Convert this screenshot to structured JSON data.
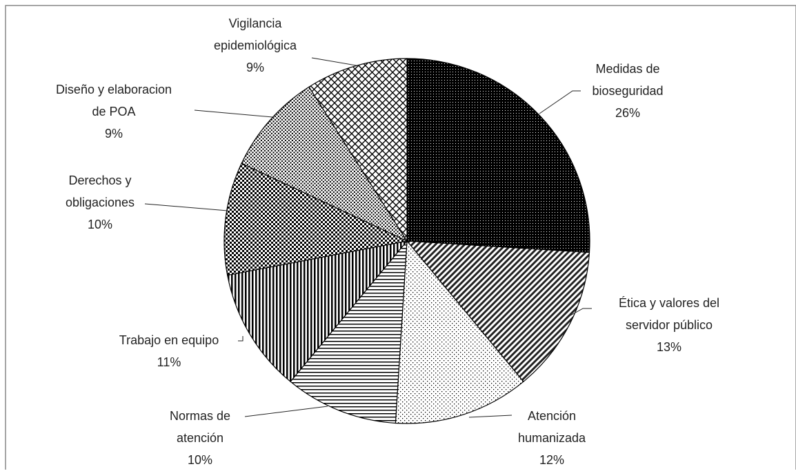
{
  "chart_data": {
    "type": "pie",
    "categories": [
      "Medidas de bioseguridad",
      "Ética y valores del servidor público",
      "Atención humanizada",
      "Normas de atención",
      "Trabajo en equipo",
      "Derechos y obligaciones",
      "Diseño y elaboracion de POA",
      "Vigilancia epidemiológica"
    ],
    "values": [
      26,
      13,
      12,
      10,
      11,
      10,
      9,
      9
    ],
    "value_labels": [
      "26%",
      "13%",
      "12%",
      "10%",
      "11%",
      "10%",
      "9%",
      "9%"
    ],
    "patterns": [
      "dense-dots",
      "diagonal",
      "sparse-dots",
      "horizontal",
      "vertical",
      "checker",
      "fine-dots",
      "crosshatch"
    ]
  }
}
